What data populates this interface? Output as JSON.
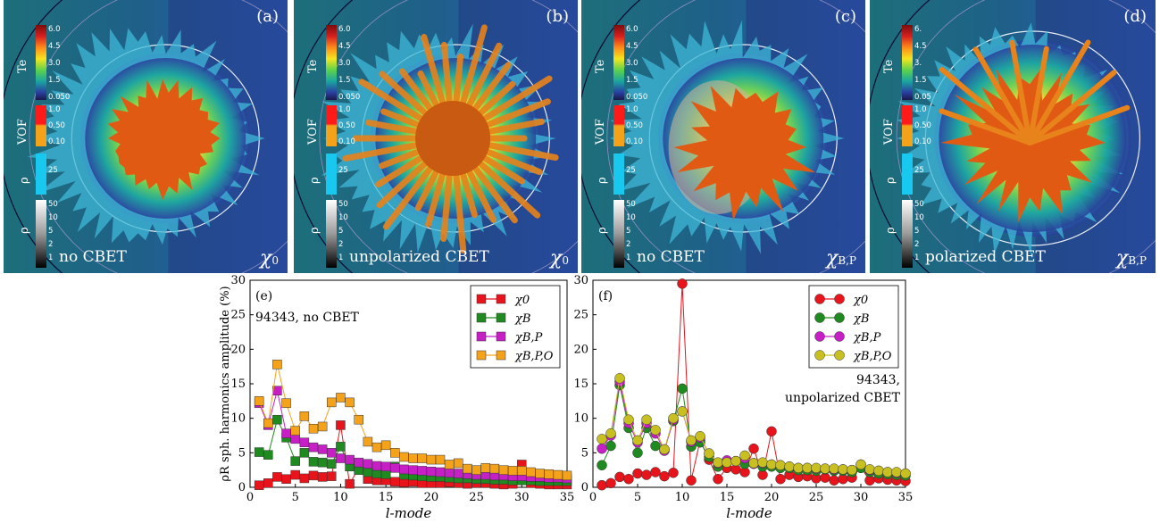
{
  "panels": [
    {
      "label": "(a)",
      "bottom": "no CBET",
      "chi": "χ",
      "chi_sub": "0"
    },
    {
      "label": "(b)",
      "bottom": "unpolarized CBET",
      "chi": "χ",
      "chi_sub": "0"
    },
    {
      "label": "(c)",
      "bottom": "no CBET",
      "chi": "χ",
      "chi_sub": "B,P"
    },
    {
      "label": "(d)",
      "bottom": "polarized CBET",
      "chi": "χ",
      "chi_sub": "B,P"
    }
  ],
  "colorbar": {
    "te_label": "Te",
    "te_ticks": [
      "6.0",
      "4.5",
      "3.0",
      "1.5",
      "0.050"
    ],
    "te_ticks_d": [
      "6.",
      "4.5",
      "3.",
      "1.5",
      "0.05"
    ],
    "vof_label": "VOF",
    "vof_ticks": [
      "1.0",
      "0.50",
      "0.10"
    ],
    "rho_label": "ρ",
    "rho_cyan_tick": "25",
    "rho2_label": "ρ",
    "rho_gray_ticks": [
      "50",
      "10",
      "5",
      "2",
      "1"
    ]
  },
  "colors": {
    "red": "#e8141c",
    "green": "#1f8a1f",
    "magenta": "#c61fc6",
    "orange": "#f5a21b",
    "olive": "#c8c020"
  },
  "chart_data": [
    {
      "type": "line",
      "panel_label": "(e)",
      "annotation": "94343, no CBET",
      "xlabel": "l-mode",
      "ylabel": "ρR sph. harmonics amplitude (%)",
      "xlim": [
        0,
        35
      ],
      "ylim": [
        0,
        30
      ],
      "xticks": [
        0,
        5,
        10,
        15,
        20,
        25,
        30,
        35
      ],
      "yticks": [
        0,
        5,
        10,
        15,
        20,
        25,
        30
      ],
      "marker": "square",
      "legend": "top-right",
      "series": [
        {
          "name": "χ0",
          "color": "#e8141c",
          "x": [
            1,
            2,
            3,
            4,
            5,
            6,
            7,
            8,
            9,
            10,
            11,
            12,
            13,
            14,
            15,
            16,
            17,
            18,
            19,
            20,
            21,
            22,
            23,
            24,
            25,
            26,
            27,
            28,
            29,
            30,
            31,
            32,
            33,
            34,
            35
          ],
          "values": [
            0.3,
            0.6,
            1.5,
            1.2,
            1.8,
            1.3,
            1.7,
            1.5,
            1.6,
            9.0,
            0.5,
            2.8,
            1.2,
            1.0,
            1.0,
            0.8,
            0.7,
            0.8,
            0.6,
            0.6,
            0.6,
            0.7,
            0.6,
            0.5,
            0.6,
            0.6,
            0.5,
            0.4,
            0.5,
            3.3,
            0.6,
            0.5,
            0.4,
            0.4,
            0.4
          ]
        },
        {
          "name": "χB",
          "color": "#1f8a1f",
          "x": [
            1,
            2,
            3,
            4,
            5,
            6,
            7,
            8,
            9,
            10,
            11,
            12,
            13,
            14,
            15,
            16,
            17,
            18,
            19,
            20,
            21,
            22,
            23,
            24,
            25,
            26,
            27,
            28,
            29,
            30,
            31,
            32,
            33,
            34,
            35
          ],
          "values": [
            5.1,
            4.7,
            9.8,
            7.2,
            3.8,
            5.0,
            3.7,
            3.6,
            3.4,
            5.9,
            3.0,
            2.5,
            2.2,
            2.0,
            1.9,
            3.0,
            1.8,
            1.7,
            1.6,
            1.5,
            1.5,
            1.4,
            1.3,
            1.3,
            1.2,
            1.2,
            1.1,
            1.1,
            1.0,
            1.0,
            1.0,
            0.9,
            0.9,
            0.9,
            0.9
          ]
        },
        {
          "name": "χB,P",
          "color": "#c61fc6",
          "x": [
            1,
            2,
            3,
            4,
            5,
            6,
            7,
            8,
            9,
            10,
            11,
            12,
            13,
            14,
            15,
            16,
            17,
            18,
            19,
            20,
            21,
            22,
            23,
            24,
            25,
            26,
            27,
            28,
            29,
            30,
            31,
            32,
            33,
            34,
            35
          ],
          "values": [
            12.2,
            9.0,
            14.0,
            7.8,
            7.0,
            6.5,
            5.8,
            5.5,
            5.0,
            4.2,
            4.0,
            3.6,
            3.4,
            3.1,
            3.0,
            2.8,
            2.6,
            2.5,
            2.4,
            2.3,
            2.2,
            2.1,
            2.0,
            1.9,
            1.8,
            1.8,
            1.7,
            1.7,
            1.6,
            1.6,
            1.5,
            1.5,
            1.4,
            1.4,
            1.3
          ]
        },
        {
          "name": "χB,P,O",
          "color": "#f5a21b",
          "x": [
            1,
            2,
            3,
            4,
            5,
            6,
            7,
            8,
            9,
            10,
            11,
            12,
            13,
            14,
            15,
            16,
            17,
            18,
            19,
            20,
            21,
            22,
            23,
            24,
            25,
            26,
            27,
            28,
            29,
            30,
            31,
            32,
            33,
            34,
            35
          ],
          "values": [
            12.5,
            9.3,
            17.8,
            12.2,
            8.2,
            10.3,
            8.5,
            8.8,
            12.3,
            13.0,
            12.3,
            9.8,
            6.6,
            5.8,
            6.1,
            5.0,
            4.4,
            4.2,
            4.2,
            4.0,
            4.0,
            3.3,
            3.5,
            2.7,
            2.5,
            2.8,
            2.7,
            2.5,
            2.4,
            2.4,
            2.2,
            2.0,
            1.9,
            1.8,
            1.7
          ]
        }
      ]
    },
    {
      "type": "line",
      "panel_label": "(f)",
      "annotation_line1": "94343,",
      "annotation_line2": "unpolarized CBET",
      "xlabel": "l-mode",
      "xlim": [
        0,
        35
      ],
      "ylim": [
        0,
        30
      ],
      "xticks": [
        0,
        5,
        10,
        15,
        20,
        25,
        30,
        35
      ],
      "yticks": [
        0,
        5,
        10,
        15,
        20,
        25,
        30
      ],
      "marker": "circle",
      "legend": "top-right",
      "series": [
        {
          "name": "χ0",
          "color": "#e8141c",
          "x": [
            1,
            2,
            3,
            4,
            5,
            6,
            7,
            8,
            9,
            10,
            11,
            12,
            13,
            14,
            15,
            16,
            17,
            18,
            19,
            20,
            21,
            22,
            23,
            24,
            25,
            26,
            27,
            28,
            29,
            30,
            31,
            32,
            33,
            34,
            35
          ],
          "values": [
            0.3,
            0.6,
            1.5,
            1.2,
            2.0,
            1.8,
            2.2,
            1.6,
            2.1,
            29.5,
            1.0,
            6.8,
            4.0,
            1.2,
            2.8,
            2.6,
            2.2,
            5.6,
            1.8,
            8.1,
            1.2,
            1.8,
            1.5,
            1.6,
            1.3,
            1.4,
            1.0,
            1.2,
            1.4,
            2.9,
            1.0,
            1.3,
            1.1,
            1.0,
            0.9
          ]
        },
        {
          "name": "χB",
          "color": "#1f8a1f",
          "x": [
            1,
            2,
            3,
            4,
            5,
            6,
            7,
            8,
            9,
            10,
            11,
            12,
            13,
            14,
            15,
            16,
            17,
            18,
            19,
            20,
            21,
            22,
            23,
            24,
            25,
            26,
            27,
            28,
            29,
            30,
            31,
            32,
            33,
            34,
            35
          ],
          "values": [
            3.2,
            6.0,
            14.8,
            8.6,
            5.0,
            8.6,
            6.0,
            5.5,
            9.6,
            14.3,
            5.9,
            6.5,
            4.4,
            3.0,
            3.6,
            3.8,
            3.4,
            3.5,
            3.0,
            3.0,
            2.8,
            2.8,
            2.5,
            2.5,
            2.4,
            2.6,
            2.4,
            2.4,
            2.2,
            2.8,
            2.2,
            2.0,
            1.9,
            1.8,
            1.7
          ]
        },
        {
          "name": "χB,P",
          "color": "#c61fc6",
          "x": [
            1,
            2,
            3,
            4,
            5,
            6,
            7,
            8,
            9,
            10,
            11,
            12,
            13,
            14,
            15,
            16,
            17,
            18,
            19,
            20,
            21,
            22,
            23,
            24,
            25,
            26,
            27,
            28,
            29,
            30,
            31,
            32,
            33,
            34,
            35
          ],
          "values": [
            5.6,
            7.5,
            15.3,
            9.3,
            6.5,
            9.3,
            7.8,
            5.3,
            9.8,
            11.0,
            6.6,
            7.2,
            4.9,
            3.5,
            3.9,
            3.8,
            4.2,
            3.4,
            3.5,
            3.3,
            3.2,
            3.0,
            2.8,
            2.8,
            2.7,
            2.7,
            2.6,
            2.6,
            2.5,
            3.3,
            2.5,
            2.4,
            2.2,
            2.1,
            2.0
          ]
        },
        {
          "name": "χB,P,O",
          "color": "#c8c020",
          "x": [
            1,
            2,
            3,
            4,
            5,
            6,
            7,
            8,
            9,
            10,
            11,
            12,
            13,
            14,
            15,
            16,
            17,
            18,
            19,
            20,
            21,
            22,
            23,
            24,
            25,
            26,
            27,
            28,
            29,
            30,
            31,
            32,
            33,
            34,
            35
          ],
          "values": [
            7.0,
            7.8,
            15.8,
            9.8,
            6.8,
            9.8,
            8.3,
            5.5,
            10.0,
            11.0,
            6.8,
            7.4,
            4.9,
            3.6,
            3.6,
            3.8,
            4.6,
            3.5,
            3.6,
            3.3,
            3.2,
            3.0,
            2.8,
            2.8,
            2.8,
            2.7,
            2.7,
            2.6,
            2.5,
            3.3,
            2.6,
            2.4,
            2.2,
            2.2,
            2.0
          ]
        }
      ]
    }
  ]
}
